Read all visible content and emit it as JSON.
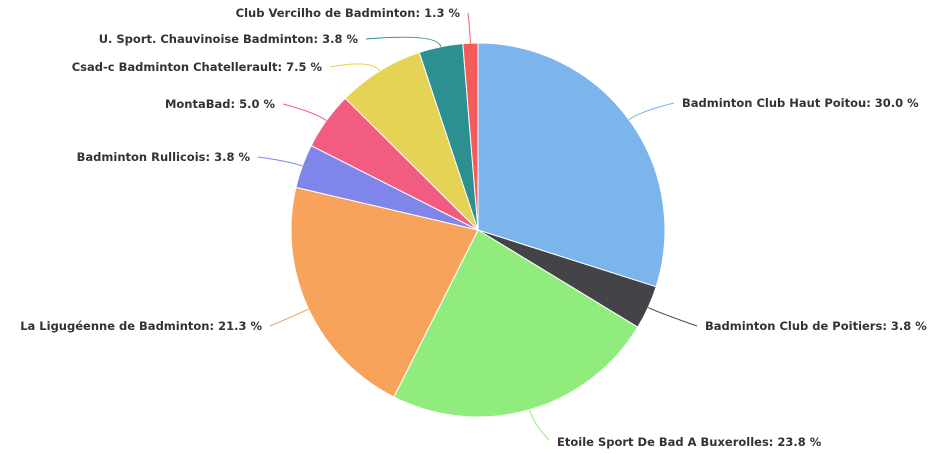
{
  "chart_data": {
    "type": "pie",
    "title": "",
    "label_format": "{name}: {value} %",
    "slices": [
      {
        "name": "Badminton Club Haut Poitou",
        "value": 30.0,
        "color": "#7cb5ec"
      },
      {
        "name": "Badminton Club de Poitiers",
        "value": 3.8,
        "color": "#434348"
      },
      {
        "name": "Etoile Sport De Bad A Buxerolles",
        "value": 23.8,
        "color": "#90ed7d"
      },
      {
        "name": "La Ligugéenne de Badminton",
        "value": 21.3,
        "color": "#f7a35c"
      },
      {
        "name": "Badminton Rullicois",
        "value": 3.8,
        "color": "#8085e9"
      },
      {
        "name": "MontaBad",
        "value": 5.0,
        "color": "#f15c80"
      },
      {
        "name": "Csad-c Badminton Chatellerault",
        "value": 7.5,
        "color": "#e4d354"
      },
      {
        "name": "U. Sport. Chauvinoise Badminton",
        "value": 3.8,
        "color": "#2b908f"
      },
      {
        "name": "Club Vercilho de Badminton",
        "value": 1.3,
        "color": "#f45b5b"
      }
    ]
  }
}
